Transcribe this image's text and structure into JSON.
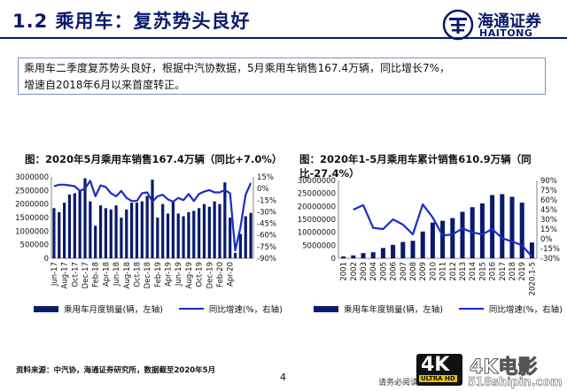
{
  "header": {
    "title": "1.2 乘用车：复苏势头良好",
    "logo_cn": "海通证券",
    "logo_en": "HAITONG"
  },
  "summary": {
    "line1": "乘用车二季度复苏势头良好，根据中汽协数据，5月乘用车销售167.4万辆，同比增长7%，",
    "line2": "增速自2018年6月以来首度转正。"
  },
  "footer": {
    "source": "资料来源：中汽协，海通证券研究所，数据截至2020年5月",
    "page": "4",
    "note": "请务必阅读",
    "watermark_4k": "4K",
    "watermark_uhd": "ULTRA HD",
    "watermark_cn": "4K电影",
    "watermark_url": "518shipin.com"
  },
  "colors": {
    "bar": "#0a1a6b",
    "line": "#1a2ccc",
    "accent": "#0a1a6b"
  },
  "chart_data": [
    {
      "type": "bar",
      "title": "图：2020年5月乘用车销售167.4万辆（同比+7.0%）",
      "left_axis": {
        "ticks": [
          "0",
          "500000",
          "1000000",
          "1500000",
          "2000000",
          "2500000",
          "3000000"
        ],
        "ylim": [
          0,
          3000000
        ]
      },
      "right_axis": {
        "ticks": [
          "-90%",
          "-75%",
          "-60%",
          "-45%",
          "-30%",
          "-15%",
          "0%",
          "15%"
        ],
        "ylim": [
          -90,
          15
        ]
      },
      "x_tick_labels": [
        "Jun-17",
        "Aug-17",
        "Oct-17",
        "Dec-17",
        "Feb-18",
        "Apr-18",
        "Jun-18",
        "Aug-18",
        "Oct-18",
        "Dec-18",
        "Feb-19",
        "Apr-19",
        "Jun-19",
        "Aug-19",
        "Oct-19",
        "Dec-19",
        "Feb-20",
        "Apr-20"
      ],
      "series": [
        {
          "name": "乘用车月度销量(辆，左轴)",
          "kind": "bar",
          "axis": "left",
          "values": [
            1850000,
            1700000,
            2050000,
            2350000,
            2400000,
            2500000,
            2950000,
            2100000,
            1200000,
            1950000,
            1850000,
            1800000,
            1950000,
            1500000,
            1800000,
            2050000,
            2050000,
            2100000,
            2300000,
            2900000,
            1500000,
            2000000,
            1650000,
            2100000,
            1650000,
            1550000,
            1700000,
            1750000,
            1850000,
            2000000,
            1900000,
            2100000,
            2000000,
            2800000,
            1500000,
            200000,
            900000,
            1550000,
            1674000
          ]
        },
        {
          "name": "同比增速(%，右轴)",
          "kind": "line",
          "axis": "right",
          "values": [
            3,
            5,
            5,
            4,
            3,
            -3,
            0,
            10,
            -10,
            4,
            2,
            -6,
            -10,
            -3,
            -12,
            -16,
            -16,
            -6,
            -5,
            -17,
            -10,
            -8,
            -14,
            -17,
            -12,
            -15,
            -7,
            -16,
            -7,
            -4,
            -2,
            -5,
            -5,
            -2,
            -6,
            -80,
            -50,
            -8,
            7
          ]
        }
      ]
    },
    {
      "type": "bar",
      "title": "图：2020年1-5月乘用车累计销售610.9万辆（同比-27.4%）",
      "categories": [
        "2001",
        "2002",
        "2003",
        "2004",
        "2005",
        "2006",
        "2007",
        "2008",
        "2009",
        "2010",
        "2011",
        "2012",
        "2013",
        "2014",
        "2015",
        "2016",
        "2017",
        "2018",
        "2019",
        "2020.1-5"
      ],
      "left_axis": {
        "ticks": [
          "0",
          "5000000",
          "10000000",
          "15000000",
          "20000000",
          "25000000",
          "30000000"
        ],
        "ylim": [
          0,
          30000000
        ]
      },
      "right_axis": {
        "ticks": [
          "-30%",
          "-15%",
          "0%",
          "15%",
          "30%",
          "45%",
          "60%",
          "75%",
          "90%"
        ],
        "ylim": [
          -30,
          90
        ]
      },
      "series": [
        {
          "name": "乘用车年度销量(辆，左轴)",
          "kind": "bar",
          "axis": "left",
          "values": [
            720000,
            1130000,
            2000000,
            2330000,
            3980000,
            5180000,
            6290000,
            6760000,
            10330000,
            13760000,
            14470000,
            15500000,
            17930000,
            19700000,
            21150000,
            24380000,
            24720000,
            23710000,
            21440000,
            6109000
          ]
        },
        {
          "name": "同比增速(%，右轴)",
          "kind": "line",
          "axis": "right",
          "values": [
            null,
            45,
            52,
            17,
            15,
            30,
            22,
            7,
            53,
            33,
            5,
            7,
            16,
            10,
            7,
            15,
            1,
            -4,
            -10,
            -27.4
          ]
        }
      ]
    }
  ]
}
